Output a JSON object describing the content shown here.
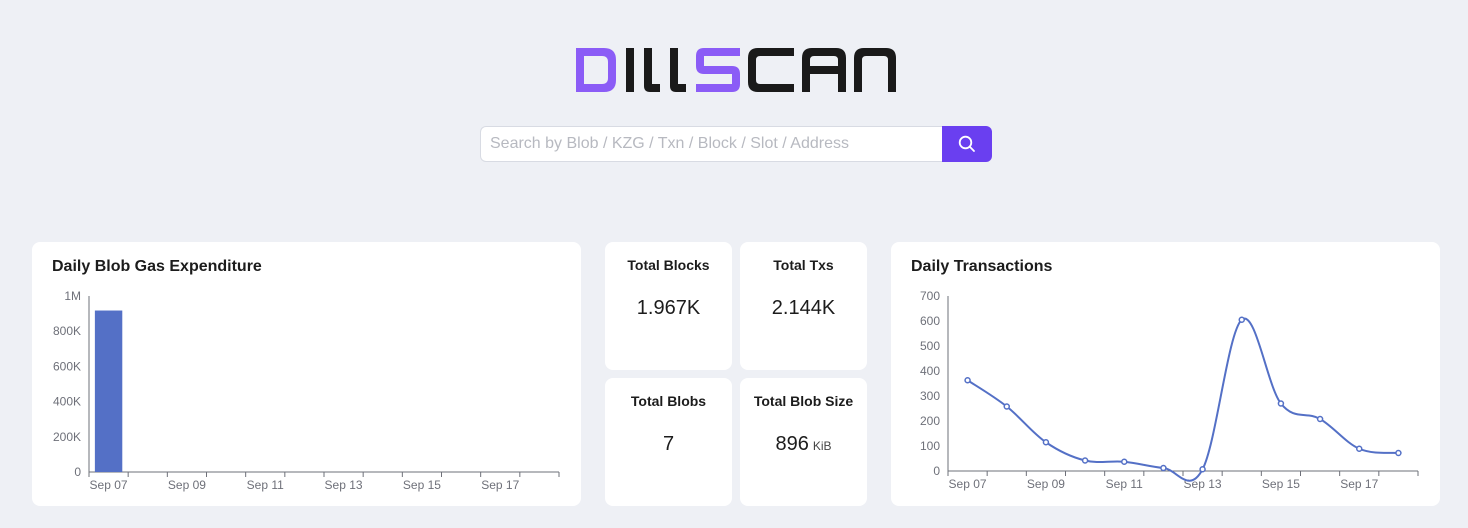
{
  "logo": {
    "text": "DILLSCAN",
    "accent_color": "#8b5cf6",
    "dark_color": "#1a1a1a"
  },
  "search": {
    "placeholder": "Search by Blob / KZG / Txn / Block / Slot / Address",
    "button_icon": "search-icon",
    "button_color": "#6a3ff0"
  },
  "gas_chart": {
    "title": "Daily Blob Gas Expenditure",
    "chart_data": {
      "type": "bar",
      "title": "Daily Blob Gas Expenditure",
      "x_tick_labels": [
        "Sep 07",
        "Sep 09",
        "Sep 11",
        "Sep 13",
        "Sep 15",
        "Sep 17"
      ],
      "y_tick_labels": [
        "0",
        "200K",
        "400K",
        "600K",
        "800K",
        "1M"
      ],
      "ylim": [
        0,
        1000000
      ],
      "categories": [
        "Sep 07",
        "Sep 08",
        "Sep 09",
        "Sep 10",
        "Sep 11",
        "Sep 12",
        "Sep 13",
        "Sep 14",
        "Sep 15",
        "Sep 16",
        "Sep 17",
        "Sep 18"
      ],
      "values": [
        917504,
        0,
        0,
        0,
        0,
        0,
        0,
        0,
        0,
        0,
        0,
        0
      ],
      "color": "#5470c6",
      "grid": false
    }
  },
  "stats": [
    {
      "label": "Total Blocks",
      "value": "1.967K",
      "unit": ""
    },
    {
      "label": "Total Txs",
      "value": "2.144K",
      "unit": ""
    },
    {
      "label": "Total Blobs",
      "value": "7",
      "unit": ""
    },
    {
      "label": "Total Blob Size",
      "value": "896",
      "unit": "KiB"
    }
  ],
  "tx_chart": {
    "title": "Daily Transactions",
    "chart_data": {
      "type": "line",
      "title": "Daily Transactions",
      "x_tick_labels": [
        "Sep 07",
        "Sep 09",
        "Sep 11",
        "Sep 13",
        "Sep 15",
        "Sep 17"
      ],
      "y_tick_labels": [
        "0",
        "100",
        "200",
        "300",
        "400",
        "500",
        "600",
        "700"
      ],
      "ylim": [
        0,
        700
      ],
      "x": [
        "Sep 07",
        "Sep 08",
        "Sep 09",
        "Sep 10",
        "Sep 11",
        "Sep 12",
        "Sep 13",
        "Sep 14",
        "Sep 15",
        "Sep 16",
        "Sep 17",
        "Sep 18"
      ],
      "values": [
        363,
        258,
        115,
        42,
        37,
        12,
        7,
        605,
        270,
        208,
        89,
        72
      ],
      "color": "#5470c6",
      "grid": false,
      "smooth": true
    }
  }
}
